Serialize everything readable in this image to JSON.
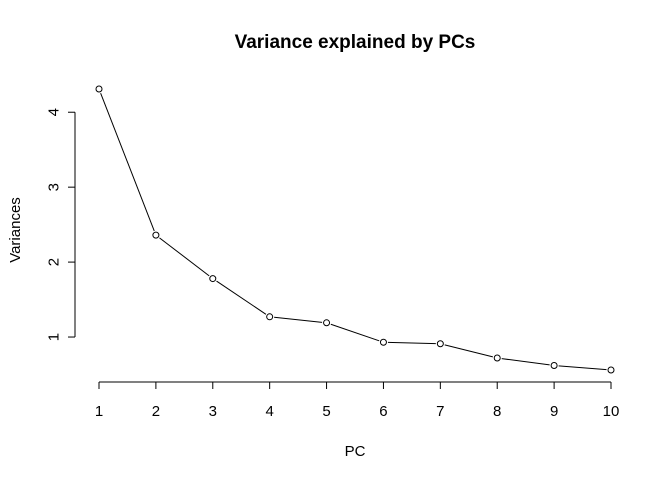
{
  "chart_data": {
    "type": "line",
    "title": "Variance explained by PCs",
    "xlabel": "PC",
    "ylabel": "Variances",
    "x": [
      1,
      2,
      3,
      4,
      5,
      6,
      7,
      8,
      9,
      10
    ],
    "values": [
      4.31,
      2.36,
      1.78,
      1.27,
      1.19,
      0.93,
      0.91,
      0.72,
      0.62,
      0.56
    ],
    "xticks": [
      "1",
      "2",
      "3",
      "4",
      "5",
      "6",
      "7",
      "8",
      "9",
      "10"
    ],
    "yticks": [
      "1",
      "2",
      "3",
      "4"
    ],
    "xlim": [
      1,
      10
    ],
    "ylim": [
      0.56,
      4.31
    ],
    "grid": false,
    "marker": "open-circle"
  }
}
